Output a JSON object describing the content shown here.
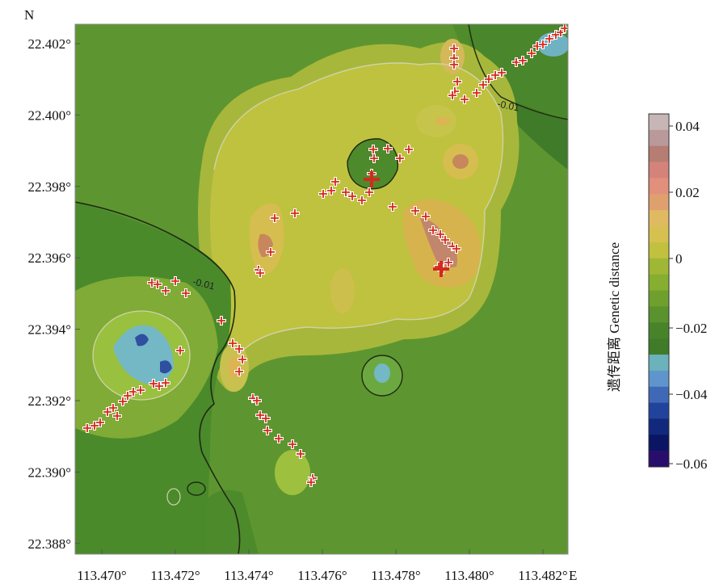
{
  "map": {
    "north_label": "N",
    "y_ticks": [
      {
        "value": 22.402,
        "label": "22.402°"
      },
      {
        "value": 22.4,
        "label": "22.400°"
      },
      {
        "value": 22.398,
        "label": "22.398°"
      },
      {
        "value": 22.396,
        "label": "22.396°"
      },
      {
        "value": 22.394,
        "label": "22.394°"
      },
      {
        "value": 22.392,
        "label": "22.392°"
      },
      {
        "value": 22.39,
        "label": "22.390°"
      },
      {
        "value": 22.388,
        "label": "22.388°"
      }
    ],
    "x_ticks": [
      {
        "value": 113.47,
        "label": "113.470°"
      },
      {
        "value": 113.472,
        "label": "113.472°"
      },
      {
        "value": 113.474,
        "label": "113.474°"
      },
      {
        "value": 113.476,
        "label": "113.476°"
      },
      {
        "value": 113.478,
        "label": "113.478°"
      },
      {
        "value": 113.48,
        "label": "113.480°"
      },
      {
        "value": 113.482,
        "label": "113.482°"
      }
    ],
    "east_label": "E",
    "contour_labels": [
      "-0.01",
      "-0.01"
    ],
    "colors": {
      "background": "#5c9630",
      "light_zone": "#bfc23e",
      "mid_zone": "#95b33b",
      "warm_zone": "#dcb552",
      "peak_zone": "#d09878",
      "cool_zone": "#73b8c4",
      "deep_zone": "#2f4fa0",
      "marker": "#d42a1d"
    }
  },
  "legend": {
    "title": "遗传距离 Genetic distance",
    "labels": [
      "0.04",
      "0.02",
      "0",
      "−0.02",
      "−0.04",
      "−0.06"
    ],
    "swatches": [
      "#c7b6b6",
      "#b99999",
      "#b67d73",
      "#d4837b",
      "#e28f7c",
      "#e0a06d",
      "#dfba60",
      "#d6c051",
      "#c2c13f",
      "#9fb734",
      "#86ae31",
      "#6fa02d",
      "#5a922d",
      "#478429",
      "#3f7b28",
      "#6bb2bb",
      "#5f95cc",
      "#3f69b6",
      "#21439b",
      "#12287c",
      "#0a1663",
      "#290d6d"
    ]
  }
}
